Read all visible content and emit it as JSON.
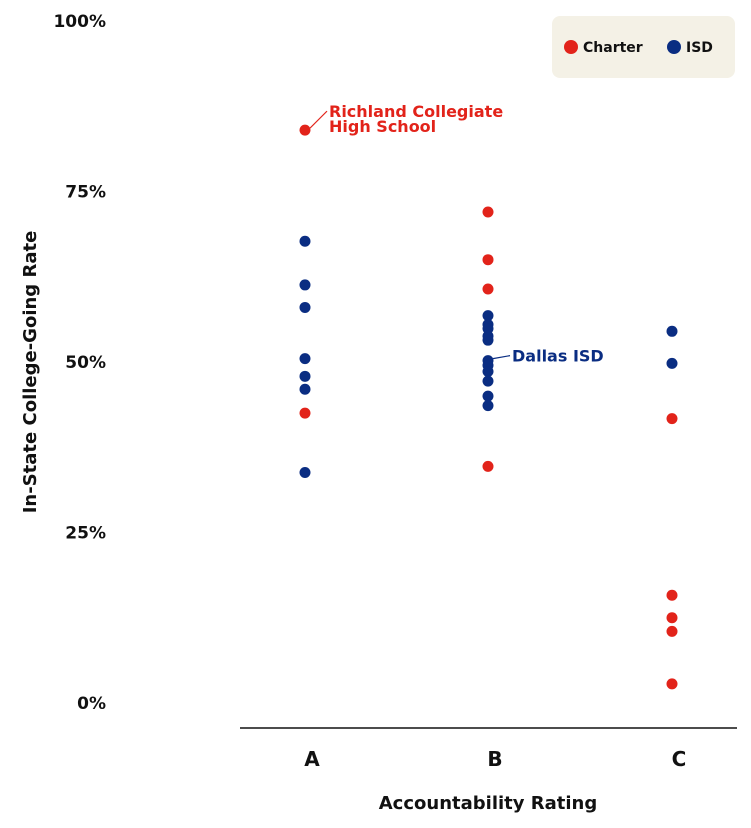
{
  "chart_data": {
    "type": "scatter",
    "title": "",
    "xlabel": "Accountability Rating",
    "ylabel": "In-State College-Going Rate",
    "categories": [
      "A",
      "B",
      "C"
    ],
    "ylim": [
      0,
      100
    ],
    "yticks": [
      0,
      25,
      50,
      75,
      100
    ],
    "ytick_labels": [
      "0%",
      "25%",
      "50%",
      "75%",
      "100%"
    ],
    "grid": false,
    "legend_placement": "top-right",
    "series": [
      {
        "name": "Charter",
        "color": "#e2231a",
        "points": [
          {
            "x": "A",
            "y": 84
          },
          {
            "x": "A",
            "y": 42.5
          },
          {
            "x": "B",
            "y": 72
          },
          {
            "x": "B",
            "y": 65
          },
          {
            "x": "B",
            "y": 60.7
          },
          {
            "x": "B",
            "y": 34.7
          },
          {
            "x": "C",
            "y": 41.7
          },
          {
            "x": "C",
            "y": 15.8
          },
          {
            "x": "C",
            "y": 12.5
          },
          {
            "x": "C",
            "y": 10.5
          },
          {
            "x": "C",
            "y": 2.8
          }
        ]
      },
      {
        "name": "ISD",
        "color": "#0a2d82",
        "points": [
          {
            "x": "A",
            "y": 67.7
          },
          {
            "x": "A",
            "y": 61.3
          },
          {
            "x": "A",
            "y": 58
          },
          {
            "x": "A",
            "y": 50.5
          },
          {
            "x": "A",
            "y": 47.9
          },
          {
            "x": "A",
            "y": 46
          },
          {
            "x": "A",
            "y": 33.8
          },
          {
            "x": "B",
            "y": 56.8
          },
          {
            "x": "B",
            "y": 55.5
          },
          {
            "x": "B",
            "y": 54.9
          },
          {
            "x": "B",
            "y": 53.8
          },
          {
            "x": "B",
            "y": 53.2
          },
          {
            "x": "B",
            "y": 50.2
          },
          {
            "x": "B",
            "y": 49.5
          },
          {
            "x": "B",
            "y": 48.6
          },
          {
            "x": "B",
            "y": 47.2
          },
          {
            "x": "B",
            "y": 45
          },
          {
            "x": "B",
            "y": 43.6
          },
          {
            "x": "C",
            "y": 54.5
          },
          {
            "x": "C",
            "y": 49.8
          }
        ]
      }
    ],
    "annotations": [
      {
        "lines": [
          "Richland Collegiate",
          "High School"
        ],
        "x": "A",
        "y": 84,
        "series": "Charter"
      },
      {
        "lines": [
          "Dallas ISD"
        ],
        "x": "B",
        "y": 50.2,
        "series": "ISD"
      }
    ]
  }
}
